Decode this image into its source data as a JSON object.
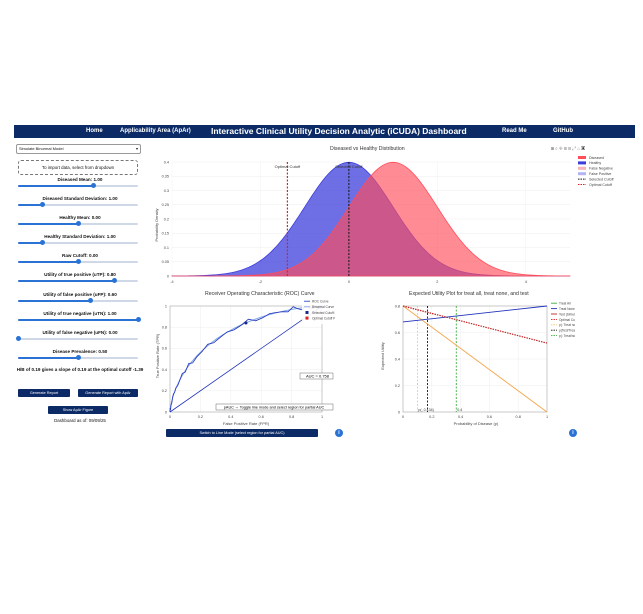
{
  "nav": {
    "home": "Home",
    "apar": "Applicability Area (ApAr)",
    "title": "Interactive Clinical Utility Decision Analytic (iCUDA) Dashboard",
    "readme": "Read Me",
    "github": "GitHub"
  },
  "sidebar": {
    "model_select": "Simulate Binormal Model",
    "import_hint": "To import data, select from dropdown",
    "sliders": [
      {
        "label": "Diseased Mean: 1.00",
        "value": 0.63
      },
      {
        "label": "Diseased Standard Deviation: 1.00",
        "value": 0.2
      },
      {
        "label": "Healthy Mean: 0.00",
        "value": 0.5
      },
      {
        "label": "Healthy Standard Deviation: 1.00",
        "value": 0.2
      },
      {
        "label": "Raw Cutoff: 0.00",
        "value": 0.5
      },
      {
        "label": "Utility of true positive (uTP): 0.80",
        "value": 0.8
      },
      {
        "label": "Utility of false positive (uFP): 0.60",
        "value": 0.6
      },
      {
        "label": "Utility of true negative (uTN): 1.00",
        "value": 1.0
      },
      {
        "label": "Utility of false negative (uFN): 0.00",
        "value": 0.0
      },
      {
        "label": "Disease Prevalence: 0.50",
        "value": 0.5
      }
    ],
    "slope_text": "H/B of 0.19 gives a slope of 0.19 at the optimal cutoff -1.39",
    "btn_report": "Generate Report",
    "btn_report_apar": "Generate Report with ApAr",
    "btn_apar_figure": "Show ApAr Figure",
    "dashboard_date": "Dashboard as of: 09/09/25"
  },
  "colors": {
    "navy": "#0b2a66",
    "diseased": "#ff4d5a",
    "healthy": "#3d3ddc",
    "optimal": "#dd2222",
    "accent": "#2a73d4"
  },
  "toolbar_icons": [
    "camera-icon",
    "zoom-icon",
    "pan-icon",
    "zoom-in-icon",
    "zoom-out-icon",
    "autoscale-icon",
    "reset-icon",
    "plotly-logo-icon"
  ],
  "chart_data": [
    {
      "type": "area",
      "title": "Diseased vs Healthy Distribution",
      "xlabel": "",
      "ylabel": "Probability Density",
      "xlim": [
        -4,
        5
      ],
      "ylim": [
        0,
        0.4
      ],
      "xticks": [
        "-4",
        "-2",
        "0",
        "2",
        "4"
      ],
      "yticks": [
        "0",
        "0.05",
        "0.1",
        "0.15",
        "0.2",
        "0.25",
        "0.3",
        "0.35",
        "0.4"
      ],
      "series": [
        {
          "name": "Diseased",
          "mean": 1,
          "sd": 1
        },
        {
          "name": "Healthy",
          "mean": 0,
          "sd": 1
        }
      ],
      "legend": [
        "Diseased",
        "Healthy",
        "False Negative",
        "False Positive",
        "Selected Cutoff",
        "Optimal Cutoff"
      ],
      "annotations": [
        {
          "text": "Optimal Cutoff",
          "x": -1.39
        },
        {
          "text": "Selected Cutoff",
          "x": 0
        }
      ],
      "legend_position": "top-right"
    },
    {
      "type": "line",
      "title": "Receiver Operating Characteristic (ROC) Curve",
      "xlabel": "False Positive Rate (FPR)",
      "ylabel": "True Positive Rate (TPR)",
      "xlim": [
        0,
        1
      ],
      "ylim": [
        0,
        1
      ],
      "xticks": [
        "0",
        "0.2",
        "0.4",
        "0.6",
        "0.8",
        "1"
      ],
      "yticks": [
        "0",
        "0.2",
        "0.4",
        "0.6",
        "0.8",
        "1"
      ],
      "legend": [
        "ROC Curve",
        "Binormal Curve",
        "Selected Cutoff Point",
        "Optimal Cutoff Point"
      ],
      "points": [
        {
          "name": "Selected Cutoff Point",
          "x": 0.5,
          "y": 0.84
        },
        {
          "name": "Optimal Cutoff Point",
          "x": 0.92,
          "y": 0.99
        }
      ],
      "auc_label": "AUC = 0.758",
      "hint": "pAUC → Toggle line mode and select region for partial AUC",
      "legend_position": "top-right"
    },
    {
      "type": "line",
      "title": "Expected Utility Plot for treat all, treat none, and test",
      "xlabel": "Probability of Disease (p)",
      "ylabel": "Expected Utility",
      "xlim": [
        0,
        1
      ],
      "ylim": [
        0,
        0.8
      ],
      "xticks": [
        "0",
        "0.2",
        "0.4",
        "0.6",
        "0.8",
        "1"
      ],
      "yticks": [
        "0",
        "0.2",
        "0.4",
        "0.6",
        "0.8"
      ],
      "series": [
        {
          "name": "Treat All",
          "x": [
            0,
            1
          ],
          "y": [
            0.8,
            0.0
          ]
        },
        {
          "name": "Treat None",
          "x": [
            0,
            1
          ],
          "y": [
            0.68,
            0.8
          ]
        },
        {
          "name": "Test (Simulated)",
          "x": [
            0,
            1
          ],
          "y": [
            0.8,
            0.52
          ]
        }
      ],
      "legend": [
        "Treat All",
        "Treat None",
        "Test (Simulated)",
        "Optimal Cutoff",
        "p(: Treat none/Test threshold)",
        "p(Test/Treat all threshold)",
        "p(: Treat/no threshold)"
      ],
      "thresholds": [
        {
          "label": "p(, 0.134)",
          "x": 0.1
        },
        {
          "label": "p(s)",
          "x": 0.17
        },
        {
          "label": "0.4",
          "x": 0.37
        }
      ],
      "legend_position": "top-right"
    }
  ],
  "roc_button": "Switch to Line Mode (select region for partial AUC)"
}
